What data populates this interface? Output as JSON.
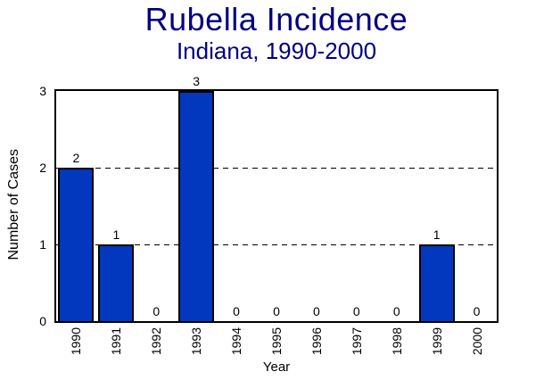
{
  "header": {
    "title": "Rubella Incidence",
    "subtitle": "Indiana, 1990-2000"
  },
  "colors": {
    "title_text": "#000082",
    "bar_fill": "#0238BE",
    "bar_border": "#000000",
    "axis_and_text": "#000000",
    "background": "#FFFFFF"
  },
  "chart_data": {
    "type": "bar",
    "title": "Rubella Incidence",
    "subtitle": "Indiana, 1990-2000",
    "categories": [
      "1990",
      "1991",
      "1992",
      "1993",
      "1994",
      "1995",
      "1996",
      "1997",
      "1998",
      "1999",
      "2000"
    ],
    "values": [
      2,
      1,
      0,
      3,
      0,
      0,
      0,
      0,
      0,
      1,
      0
    ],
    "data_labels": [
      "2",
      "1",
      "0",
      "3",
      "0",
      "0",
      "0",
      "0",
      "0",
      "1",
      "0"
    ],
    "xlabel": "Year",
    "ylabel": "Number of Cases",
    "ylim": [
      0,
      3
    ],
    "yticks": [
      "0",
      "1",
      "2",
      "3"
    ],
    "grid_y": [
      1,
      2
    ],
    "grid_style": "dashed",
    "legend_position": "none"
  }
}
